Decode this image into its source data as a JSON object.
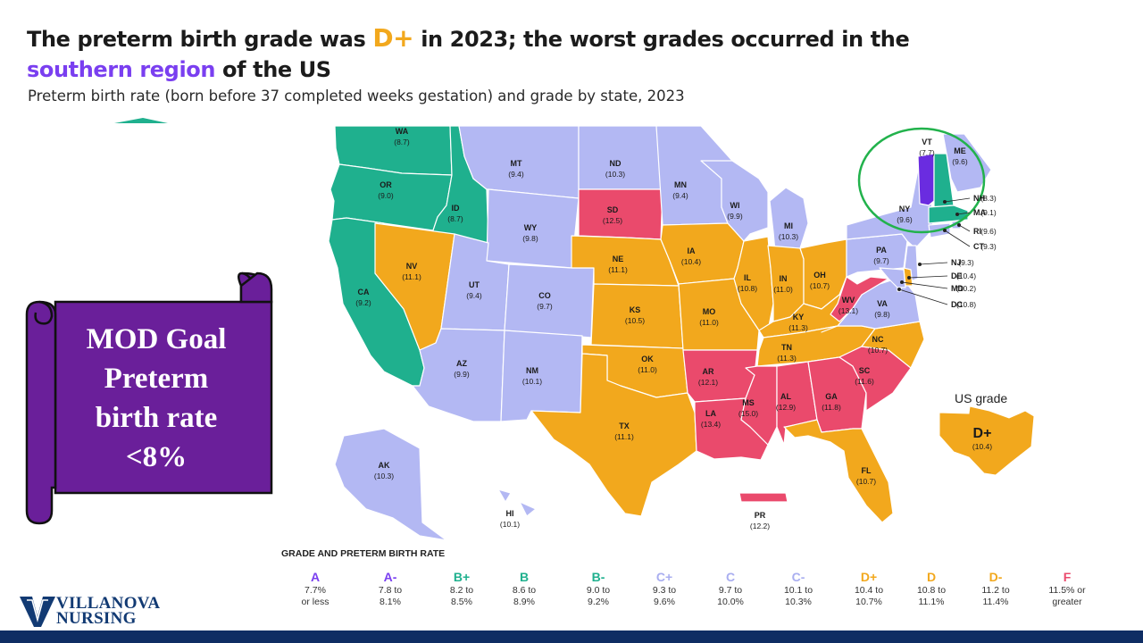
{
  "title": {
    "part1": "The preterm birth grade was ",
    "grade": "D+",
    "part2": " in 2023; the worst grades occurred in the ",
    "region": "southern region",
    "part3": " of the US"
  },
  "subtitle": "Preterm birth rate (born before 37 completed weeks gestation) and grade by state, 2023",
  "colors": {
    "A": "#6a2ce0",
    "B": "#1fb08e",
    "C": "#b3b8f3",
    "D": "#f2a81d",
    "F": "#ea4a6c",
    "scroll": "#6a1f9a",
    "circle": "#22b24c",
    "navy": "#0f2d63"
  },
  "states": [
    {
      "abbr": "WA",
      "rate": "(8.7)",
      "color": "B"
    },
    {
      "abbr": "OR",
      "rate": "(9.0)",
      "color": "B"
    },
    {
      "abbr": "CA",
      "rate": "(9.2)",
      "color": "B"
    },
    {
      "abbr": "ID",
      "rate": "(8.7)",
      "color": "B"
    },
    {
      "abbr": "NV",
      "rate": "(11.1)",
      "color": "D"
    },
    {
      "abbr": "MT",
      "rate": "(9.4)",
      "color": "C"
    },
    {
      "abbr": "WY",
      "rate": "(9.8)",
      "color": "C"
    },
    {
      "abbr": "UT",
      "rate": "(9.4)",
      "color": "C"
    },
    {
      "abbr": "CO",
      "rate": "(9.7)",
      "color": "C"
    },
    {
      "abbr": "AZ",
      "rate": "(9.9)",
      "color": "C"
    },
    {
      "abbr": "NM",
      "rate": "(10.1)",
      "color": "C"
    },
    {
      "abbr": "ND",
      "rate": "(10.3)",
      "color": "C"
    },
    {
      "abbr": "SD",
      "rate": "(12.5)",
      "color": "F"
    },
    {
      "abbr": "NE",
      "rate": "(11.1)",
      "color": "D"
    },
    {
      "abbr": "KS",
      "rate": "(10.5)",
      "color": "D"
    },
    {
      "abbr": "OK",
      "rate": "(11.0)",
      "color": "D"
    },
    {
      "abbr": "TX",
      "rate": "(11.1)",
      "color": "D"
    },
    {
      "abbr": "MN",
      "rate": "(9.4)",
      "color": "C"
    },
    {
      "abbr": "IA",
      "rate": "(10.4)",
      "color": "D"
    },
    {
      "abbr": "MO",
      "rate": "(11.0)",
      "color": "D"
    },
    {
      "abbr": "AR",
      "rate": "(12.1)",
      "color": "F"
    },
    {
      "abbr": "LA",
      "rate": "(13.4)",
      "color": "F"
    },
    {
      "abbr": "WI",
      "rate": "(9.9)",
      "color": "C"
    },
    {
      "abbr": "IL",
      "rate": "(10.8)",
      "color": "D"
    },
    {
      "abbr": "MI",
      "rate": "(10.3)",
      "color": "C"
    },
    {
      "abbr": "IN",
      "rate": "(11.0)",
      "color": "D"
    },
    {
      "abbr": "OH",
      "rate": "(10.7)",
      "color": "D"
    },
    {
      "abbr": "KY",
      "rate": "(11.3)",
      "color": "D"
    },
    {
      "abbr": "TN",
      "rate": "(11.3)",
      "color": "D"
    },
    {
      "abbr": "MS",
      "rate": "(15.0)",
      "color": "F"
    },
    {
      "abbr": "AL",
      "rate": "(12.9)",
      "color": "F"
    },
    {
      "abbr": "GA",
      "rate": "(11.8)",
      "color": "F"
    },
    {
      "abbr": "FL",
      "rate": "(10.7)",
      "color": "D"
    },
    {
      "abbr": "SC",
      "rate": "(11.6)",
      "color": "F"
    },
    {
      "abbr": "NC",
      "rate": "(10.7)",
      "color": "D"
    },
    {
      "abbr": "VA",
      "rate": "(9.8)",
      "color": "C"
    },
    {
      "abbr": "WV",
      "rate": "(13.1)",
      "color": "F"
    },
    {
      "abbr": "PA",
      "rate": "(9.7)",
      "color": "C"
    },
    {
      "abbr": "NY",
      "rate": "(9.6)",
      "color": "C"
    },
    {
      "abbr": "VT",
      "rate": "(7.7)",
      "color": "A"
    },
    {
      "abbr": "ME",
      "rate": "(9.6)",
      "color": "C"
    },
    {
      "abbr": "NH",
      "rate": "(8.3)",
      "color": "B"
    },
    {
      "abbr": "MA",
      "rate": "(9.1)",
      "color": "B"
    },
    {
      "abbr": "RI",
      "rate": "(9.6)",
      "color": "C"
    },
    {
      "abbr": "CT",
      "rate": "(9.3)",
      "color": "C"
    },
    {
      "abbr": "NJ",
      "rate": "(9.3)",
      "color": "C"
    },
    {
      "abbr": "DE",
      "rate": "(10.4)",
      "color": "D"
    },
    {
      "abbr": "MD",
      "rate": "(10.2)",
      "color": "C"
    },
    {
      "abbr": "DC",
      "rate": "(10.8)",
      "color": "D"
    },
    {
      "abbr": "AK",
      "rate": "(10.3)",
      "color": "C"
    },
    {
      "abbr": "HI",
      "rate": "(10.1)",
      "color": "C"
    },
    {
      "abbr": "PR",
      "rate": "(12.2)",
      "color": "F"
    }
  ],
  "us_grade": {
    "label": "US grade",
    "grade": "D+",
    "rate": "(10.4)"
  },
  "callout": {
    "line1": "MOD Goal",
    "line2": "Preterm",
    "line3": "birth rate",
    "line4": "<8%"
  },
  "legend": {
    "title": "GRADE AND PRETERM BIRTH RATE",
    "items": [
      {
        "grade": "A",
        "range1": "7.7%",
        "range2": "or less",
        "color": "#7a3ff0"
      },
      {
        "grade": "A-",
        "range1": "7.8 to",
        "range2": "8.1%",
        "color": "#7a3ff0"
      },
      {
        "grade": "B+",
        "range1": "8.2 to",
        "range2": "8.5%",
        "color": "#1fb08e"
      },
      {
        "grade": "B",
        "range1": "8.6 to",
        "range2": "8.9%",
        "color": "#1fb08e"
      },
      {
        "grade": "B-",
        "range1": "9.0 to",
        "range2": "9.2%",
        "color": "#1fb08e"
      },
      {
        "grade": "C+",
        "range1": "9.3 to",
        "range2": "9.6%",
        "color": "#a9aef0"
      },
      {
        "grade": "C",
        "range1": "9.7 to",
        "range2": "10.0%",
        "color": "#a9aef0"
      },
      {
        "grade": "C-",
        "range1": "10.1 to",
        "range2": "10.3%",
        "color": "#a9aef0"
      },
      {
        "grade": "D+",
        "range1": "10.4 to",
        "range2": "10.7%",
        "color": "#f2a81d"
      },
      {
        "grade": "D",
        "range1": "10.8 to",
        "range2": "11.1%",
        "color": "#f2a81d"
      },
      {
        "grade": "D-",
        "range1": "11.2 to",
        "range2": "11.4%",
        "color": "#f2a81d"
      },
      {
        "grade": "F",
        "range1": "11.5% or",
        "range2": "greater",
        "color": "#ea4a6c"
      }
    ]
  },
  "logo": {
    "line1": "VILLANOVA",
    "line2": "NURSING"
  }
}
